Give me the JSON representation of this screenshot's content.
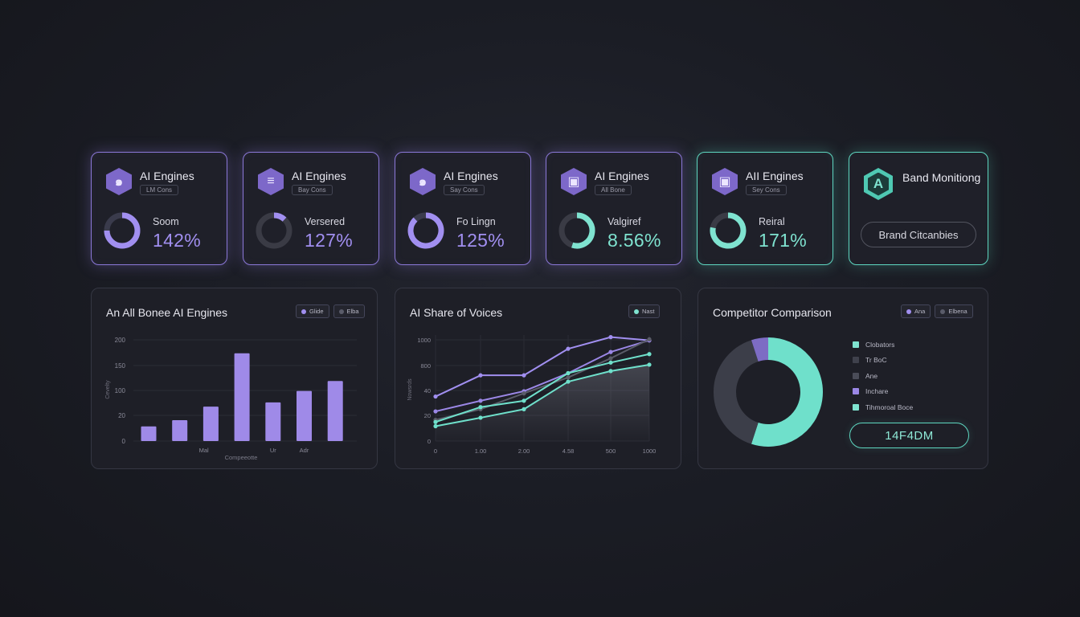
{
  "kpi_cards": [
    {
      "title": "AI Engines",
      "tag": "LM Cons",
      "label": "Soom",
      "value": "142%",
      "icon": "hexagon-swirl-icon",
      "accent": "purple",
      "ring_fraction": 0.75,
      "ring_color": "#a18ff0",
      "ring_track": "#3a3b4c"
    },
    {
      "title": "AI Engines",
      "tag": "Bay Cons",
      "label": "Versered",
      "value": "127%",
      "icon": "hexagon-layers-icon",
      "accent": "purple",
      "ring_fraction": 0.12,
      "ring_color": "#a18ff0",
      "ring_track": "#3a3b45"
    },
    {
      "title": "AI Engines",
      "tag": "Say Cons",
      "label": "Fo Lingn",
      "value": "125%",
      "icon": "hexagon-swirl-icon",
      "accent": "purple",
      "ring_fraction": 0.88,
      "ring_color": "#a18ff0",
      "ring_track": "#3a3b4c"
    },
    {
      "title": "AI Engines",
      "tag": "All Bone",
      "label": "Valgiref",
      "value": "8.56%",
      "icon": "hexagon-box-icon",
      "accent": "purple",
      "ring_fraction": 0.55,
      "ring_color": "#7fe3d0",
      "ring_track": "#3a3b45"
    },
    {
      "title": "AII Engines",
      "tag": "Sey Cons",
      "label": "Reiral",
      "value": "171%",
      "icon": "hexagon-box-icon",
      "accent": "teal",
      "ring_fraction": 0.78,
      "ring_color": "#7fe3d0",
      "ring_track": "#3a3b45"
    }
  ],
  "brand_card": {
    "title": "Band Monitiong",
    "icon_letter": "A",
    "icon": "hexagon-a-icon",
    "button": "Brand Citcanbies"
  },
  "bar_panel": {
    "title": "An All Bonee AI Engines",
    "legend": [
      {
        "label": "Glide",
        "color": "#a18ff0"
      },
      {
        "label": "Elba",
        "color": "#5a5c6a"
      }
    ]
  },
  "line_panel": {
    "title": "AI Share of Voices",
    "legend": [
      {
        "label": "Nast",
        "color": "#7fe3d0"
      }
    ]
  },
  "comp_panel": {
    "title": "Competitor Comparison",
    "legend_chips": [
      {
        "label": "Ana",
        "color": "#a18ff0"
      },
      {
        "label": "Elbena",
        "color": "#5a5c6a"
      }
    ],
    "items": [
      {
        "label": "Clobators",
        "color": "#7fe3d0"
      },
      {
        "label": "Tr BoC",
        "color": "#3f414c"
      },
      {
        "label": "Ane",
        "color": "#4a4c58"
      },
      {
        "label": "Inchare",
        "color": "#9b87e6"
      },
      {
        "label": "Tihmoroal Boce",
        "color": "#7fe3d0"
      }
    ],
    "total": "14F4DM"
  },
  "chart_data": [
    {
      "type": "bar",
      "title": "An All Bonee AI Engines",
      "xlabel": "Compeeotte",
      "ylabel": "Cevelty",
      "yticks": [
        "200",
        "150",
        "100",
        "20",
        "0"
      ],
      "xticks": [
        {
          "label": "Mal",
          "index": 1
        },
        {
          "label": "Ur",
          "index": 4
        },
        {
          "label": "Adr",
          "index": 5
        }
      ],
      "values": [
        28,
        40,
        66,
        168,
        74,
        96,
        115
      ],
      "ylim": [
        0,
        200
      ],
      "color": "#9f8ae8"
    },
    {
      "type": "line",
      "title": "AI Share of Voices",
      "ylabel": "Nowsrds",
      "xticks": [
        "0",
        "1.00",
        "2.00",
        "4.58",
        "500",
        "1000"
      ],
      "yticks": [
        "1000",
        "800",
        "40",
        "20",
        "0"
      ],
      "series": [
        {
          "color": "#a18ff0",
          "values": [
            0.42,
            0.62,
            0.62,
            0.87,
            0.98,
            0.95
          ]
        },
        {
          "color": "#9b87e6",
          "values": [
            0.28,
            0.38,
            0.47,
            0.64,
            0.84,
            0.95
          ]
        },
        {
          "color": "#5a5c68",
          "values": [
            0.2,
            0.3,
            0.45,
            0.6,
            0.78,
            0.96
          ]
        },
        {
          "color": "#6fe0cb",
          "values": [
            0.18,
            0.32,
            0.38,
            0.64,
            0.74,
            0.82
          ]
        },
        {
          "color": "#6fe0cb",
          "values": [
            0.14,
            0.22,
            0.3,
            0.56,
            0.66,
            0.72
          ]
        }
      ]
    },
    {
      "type": "pie",
      "title": "Competitor Comparison",
      "slices": [
        {
          "value": 0.55,
          "color": "#6fe0cb"
        },
        {
          "value": 0.4,
          "color": "#3c3e49"
        },
        {
          "value": 0.05,
          "color": "#7d6cc4"
        }
      ]
    }
  ]
}
